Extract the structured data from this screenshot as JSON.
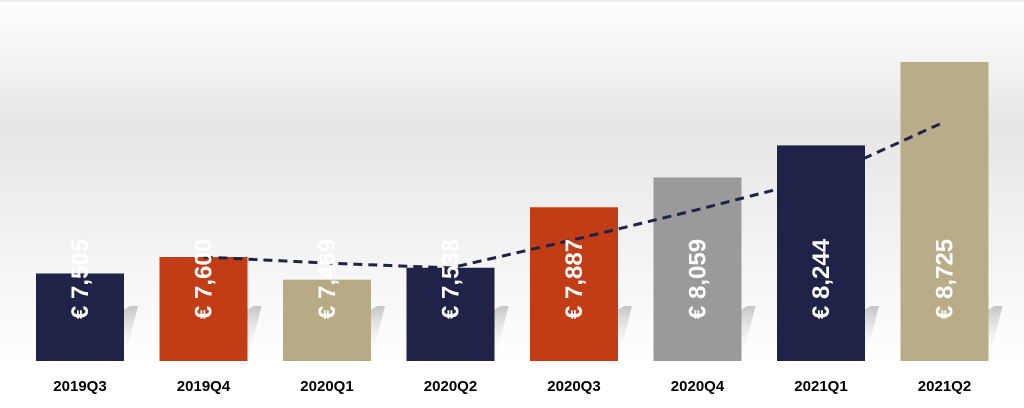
{
  "chart_data": {
    "type": "bar",
    "categories": [
      "2019Q3",
      "2019Q4",
      "2020Q1",
      "2020Q2",
      "2020Q3",
      "2020Q4",
      "2021Q1",
      "2021Q2"
    ],
    "values": [
      7505,
      7600,
      7469,
      7538,
      7887,
      8059,
      8244,
      8725
    ],
    "value_labels": [
      "€ 7,505",
      "€ 7,600",
      "€ 7,469",
      "€ 7,538",
      "€ 7,887",
      "€ 8,059",
      "€ 8,244",
      "€ 8,725"
    ],
    "bar_colors": [
      "#1e2347",
      "#c23c16",
      "#b8aa85",
      "#1e2347",
      "#c23c16",
      "#9a9a9a",
      "#1e2347",
      "#b8ad88"
    ],
    "trendline": {
      "style": "dashed",
      "color": "#1e2347",
      "categories": [
        "2019Q4",
        "2020Q1",
        "2020Q2",
        "2020Q3",
        "2020Q4",
        "2021Q1",
        "2021Q2"
      ],
      "values": [
        7600,
        7565,
        7537,
        7700,
        7873,
        8056,
        8380
      ]
    },
    "title": "",
    "xlabel": "",
    "ylabel": "",
    "ylim": [
      7000,
      8800
    ],
    "grid": false,
    "legend": "none",
    "label_color": "#ffffff",
    "category_label_color": "#000000"
  }
}
